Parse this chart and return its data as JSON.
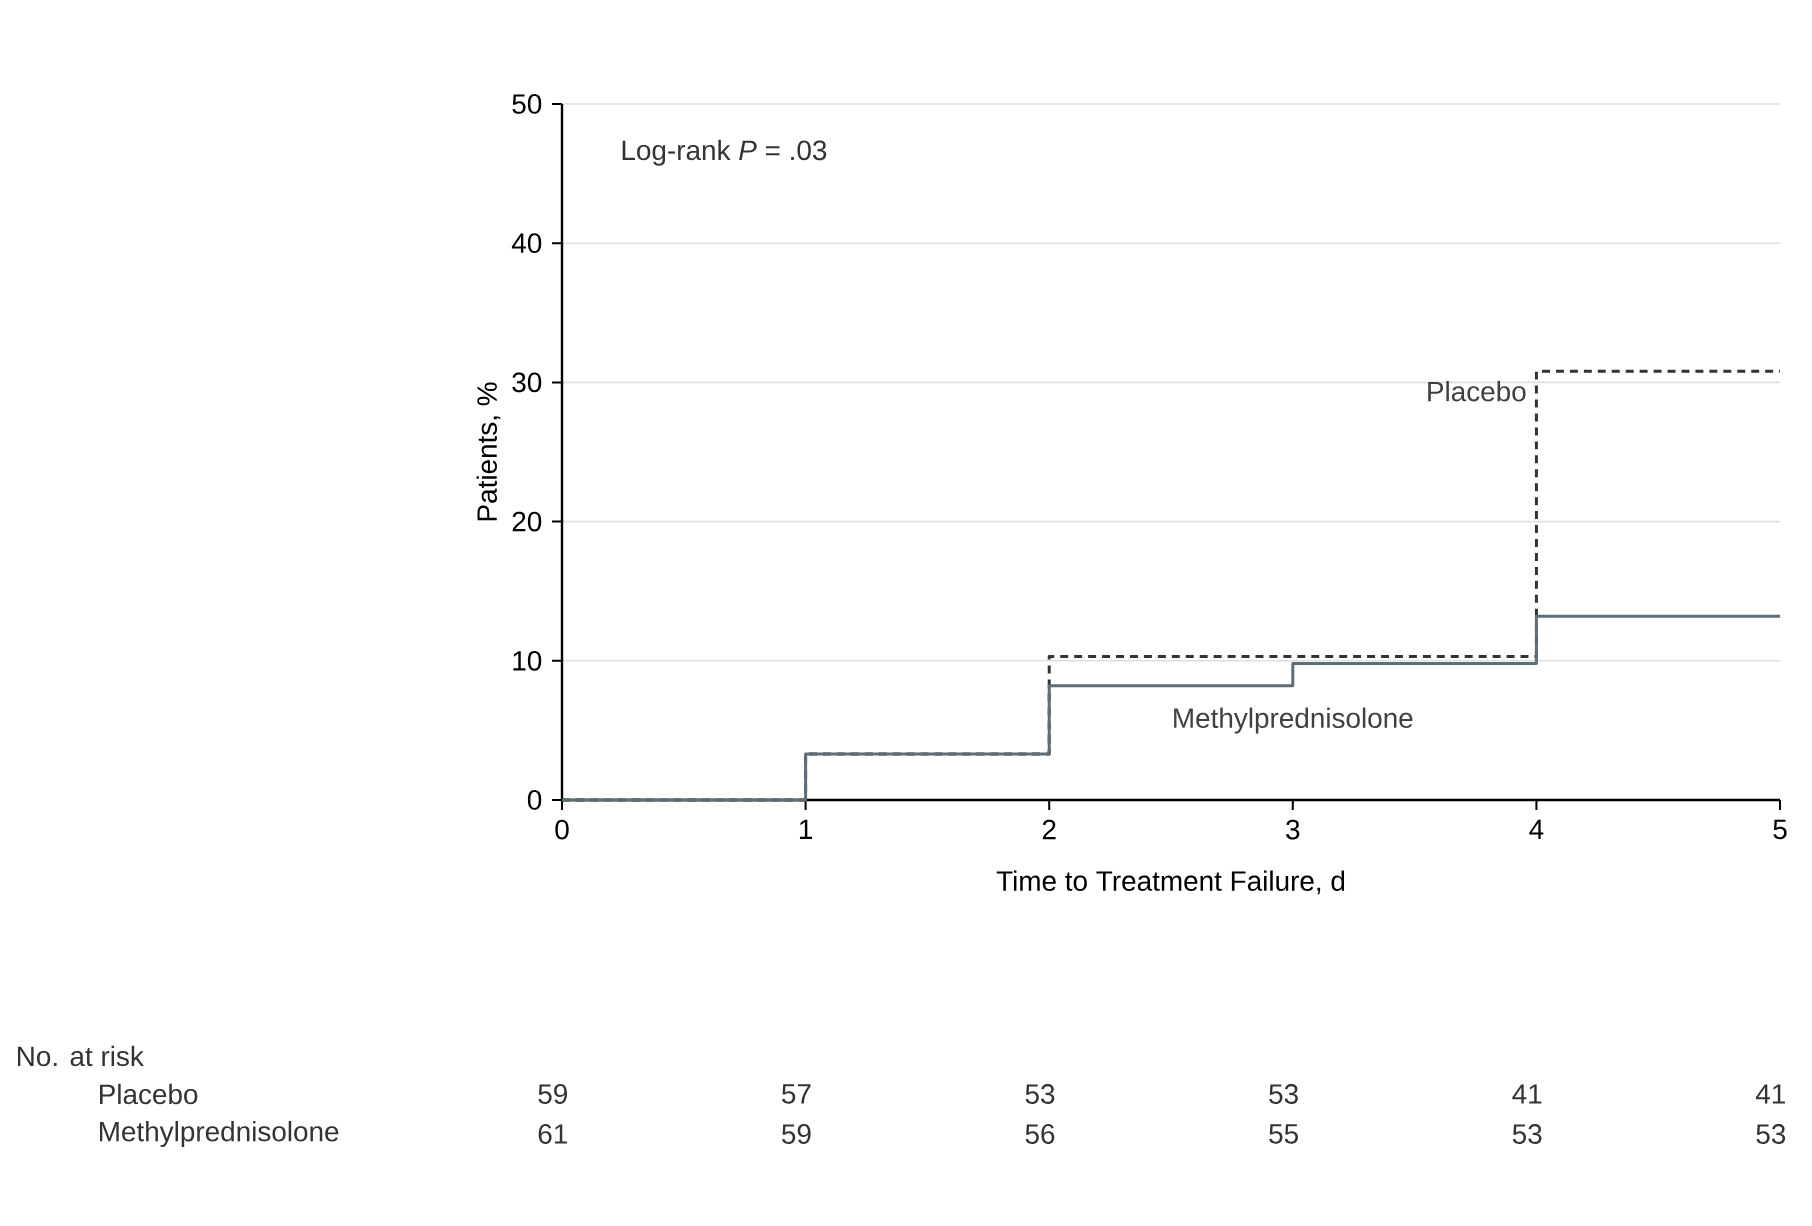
{
  "chart_data": {
    "type": "step",
    "xlabel": "Time to Treatment Failure, d",
    "ylabel": "Patients, %",
    "x": [
      0,
      1,
      2,
      3,
      4,
      5
    ],
    "series": [
      {
        "name": "Placebo",
        "color": "#333333",
        "line_style": "dashed",
        "values": [
          0,
          3.3,
          10.3,
          10.3,
          30.8,
          30.8
        ]
      },
      {
        "name": "Methylprednisolone",
        "color": "#5f6e76",
        "line_style": "solid",
        "values": [
          0,
          3.3,
          8.2,
          9.8,
          13.2,
          13.2
        ]
      }
    ],
    "xlim": [
      0,
      5
    ],
    "ylim": [
      0,
      50
    ],
    "xticks": [
      0,
      1,
      2,
      3,
      4,
      5
    ],
    "yticks": [
      0,
      10,
      20,
      30,
      40,
      50
    ],
    "grid": "y",
    "annotations": [
      "Log-rank *P* = .03",
      "No. at risk",
      "59",
      "57",
      "53",
      "53",
      "41",
      "41",
      "61",
      "59",
      "56",
      "55",
      "53",
      "53"
    ]
  }
}
